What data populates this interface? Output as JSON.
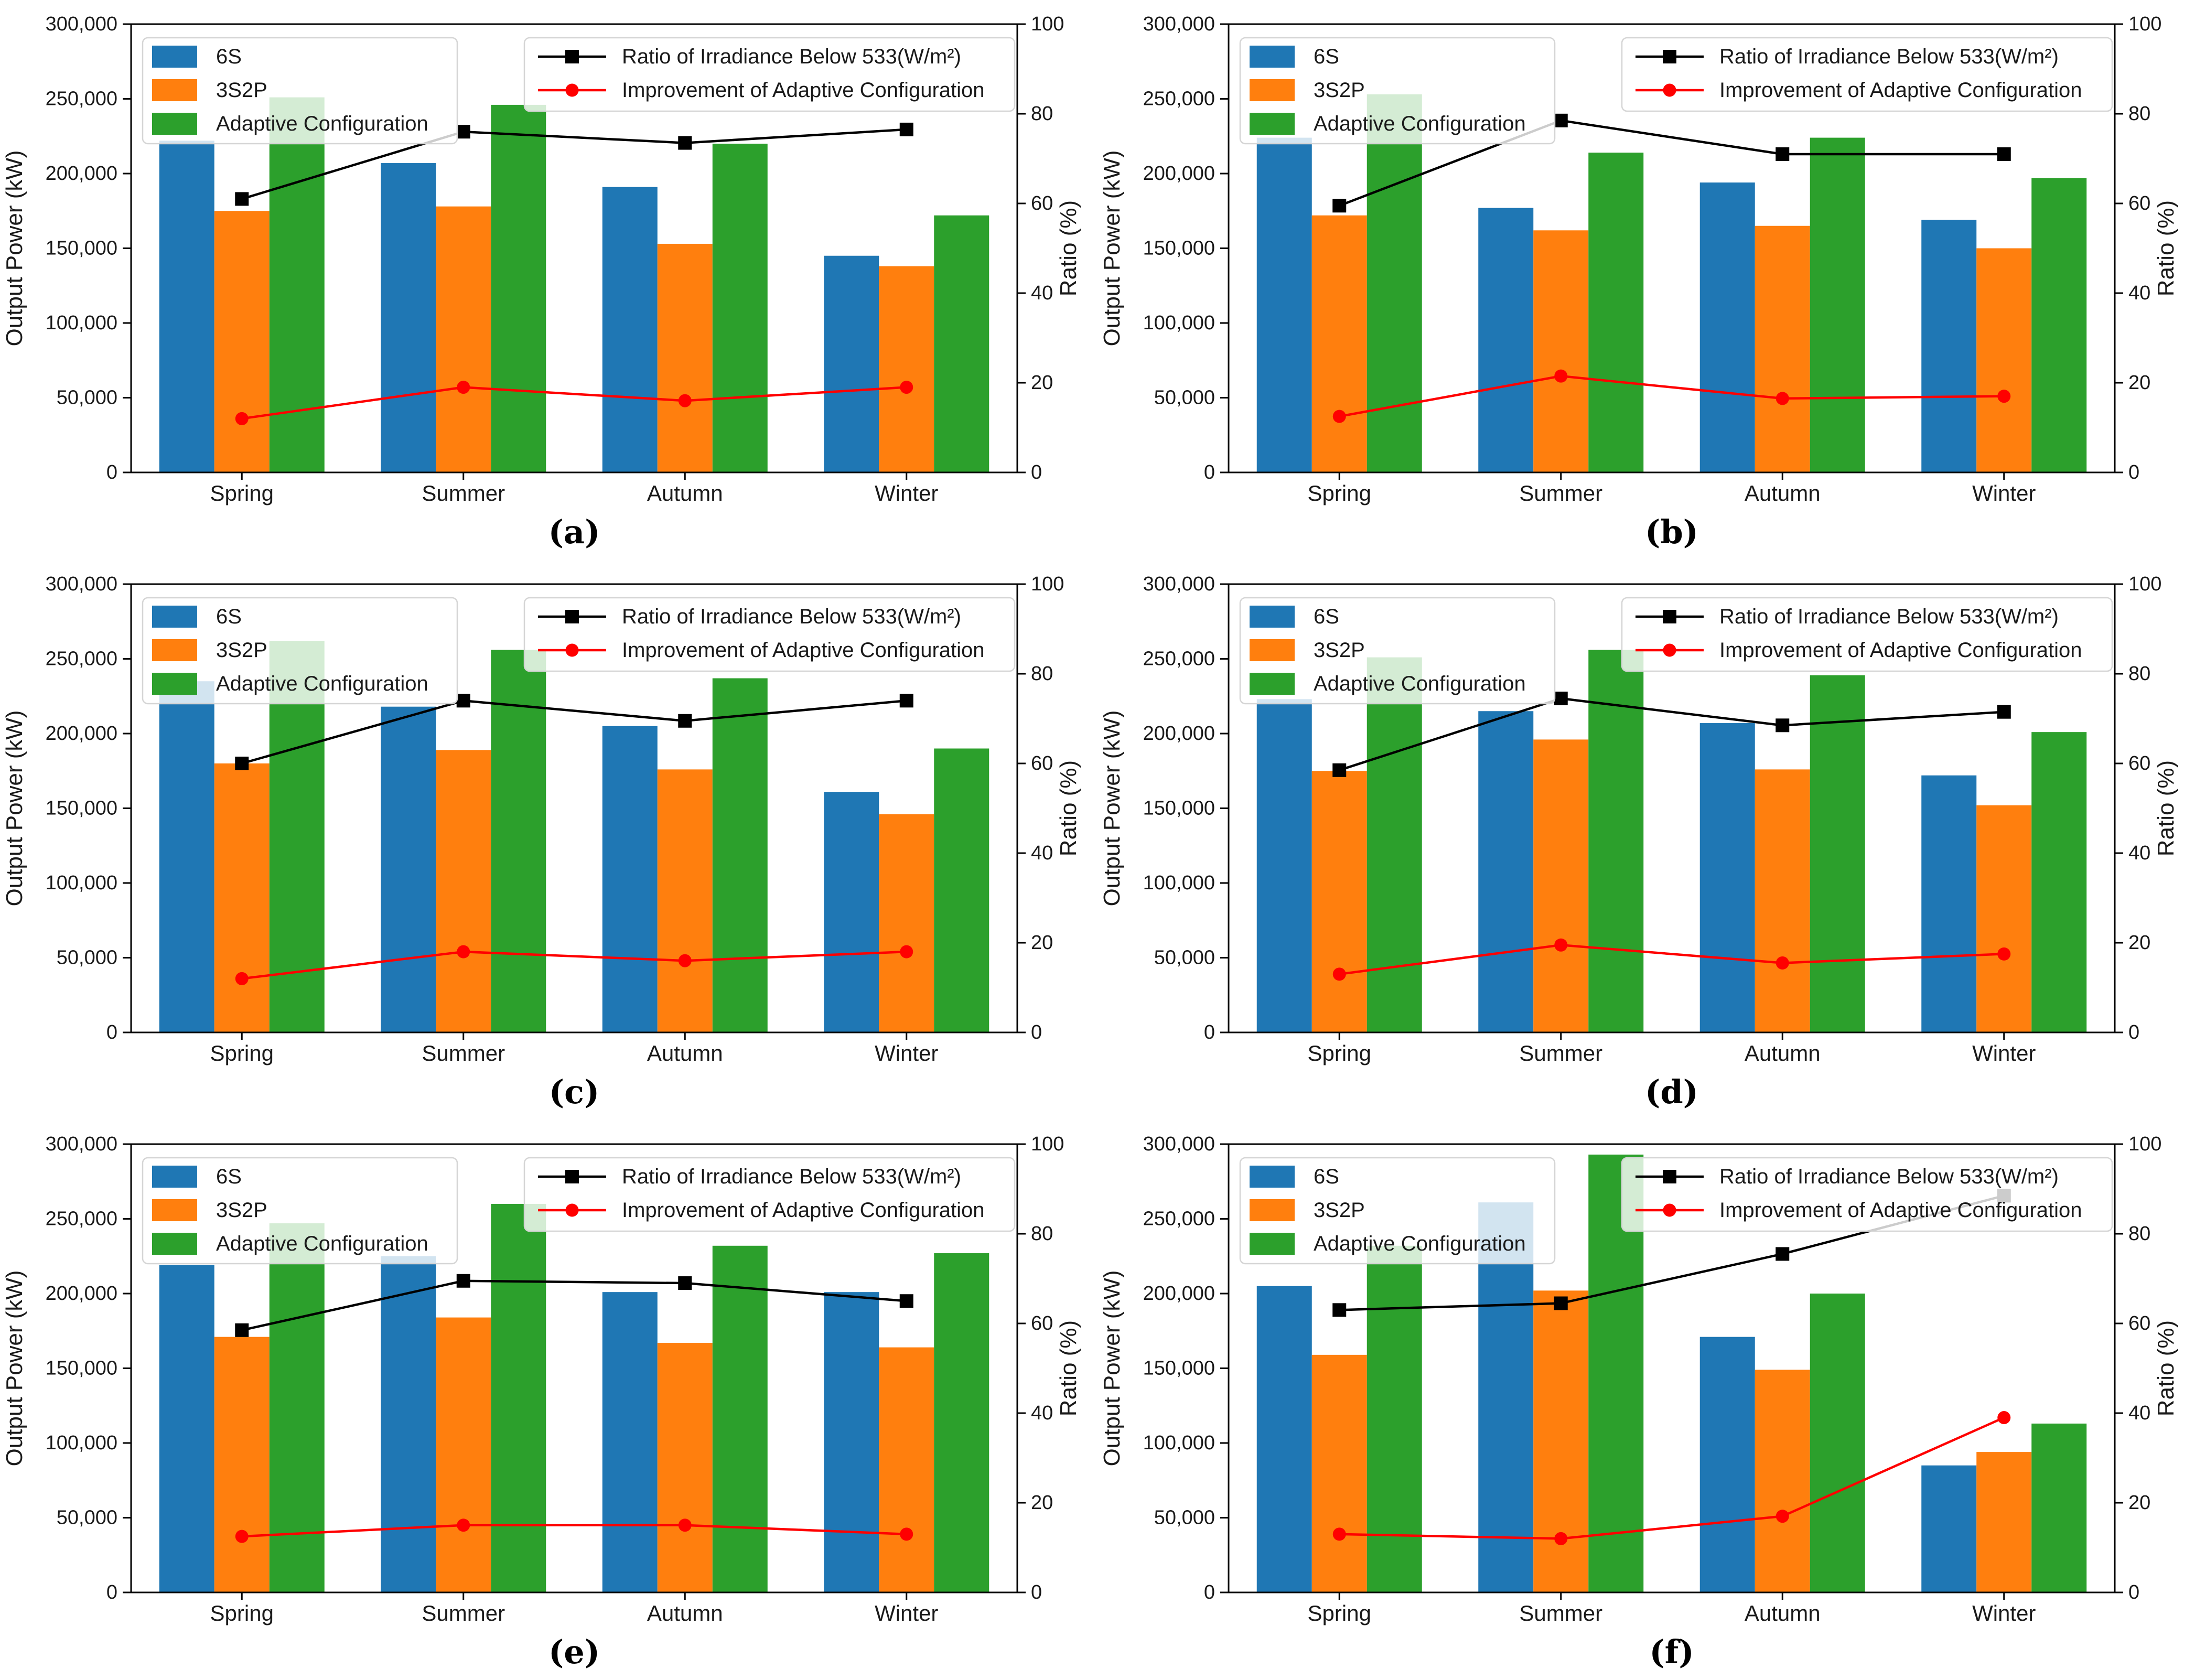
{
  "axes": {
    "ylabel": "Output Power (kW)",
    "y2label": "Ratio (%)",
    "categories": [
      "Spring",
      "Summer",
      "Autumn",
      "Winter"
    ],
    "ylim": [
      0,
      300000
    ],
    "y2lim": [
      0,
      100
    ],
    "yticks": [
      {
        "value": 0,
        "label": "0"
      },
      {
        "value": 50000,
        "label": "50,000"
      },
      {
        "value": 100000,
        "label": "100,000"
      },
      {
        "value": 150000,
        "label": "150,000"
      },
      {
        "value": 200000,
        "label": "200,000"
      },
      {
        "value": 250000,
        "label": "250,000"
      },
      {
        "value": 300000,
        "label": "300,000"
      }
    ],
    "y2ticks": [
      {
        "value": 0,
        "label": "0"
      },
      {
        "value": 20,
        "label": "20"
      },
      {
        "value": 40,
        "label": "40"
      },
      {
        "value": 60,
        "label": "60"
      },
      {
        "value": 80,
        "label": "80"
      },
      {
        "value": 100,
        "label": "100"
      }
    ],
    "grid": "off",
    "legend_position": "bars top-left, lines top-right"
  },
  "legend": {
    "bar_entries": [
      {
        "label": "6S",
        "color": "#1f77b4"
      },
      {
        "label": "3S2P",
        "color": "#ff7f0e"
      },
      {
        "label": "Adaptive Configuration",
        "color": "#2ca02c"
      }
    ],
    "line_entries": [
      {
        "label": "Ratio of Irradiance Below 533(W/m²)",
        "color": "#000000",
        "marker": "square"
      },
      {
        "label": "Improvement of Adaptive Configuration",
        "color": "#ff0000",
        "marker": "circle"
      }
    ]
  },
  "style": {
    "background": "#ffffff",
    "axis_color": "#000000",
    "text_color": "#1a1a1a",
    "legend_bg": "rgba(255,255,255,0.8)",
    "legend_border": "#d5d5d5",
    "bar_blue": "#1f77b4",
    "bar_orange": "#ff7f0e",
    "bar_green": "#2ca02c",
    "ratio_line": "#000000",
    "improvement_line": "#ff0000"
  },
  "chart_data": [
    {
      "label": "(a)",
      "type": "bar+line",
      "categories": [
        "Spring",
        "Summer",
        "Autumn",
        "Winter"
      ],
      "series": [
        {
          "name": "6S",
          "values": [
            222000,
            207000,
            191000,
            145000
          ]
        },
        {
          "name": "3S2P",
          "values": [
            175000,
            178000,
            153000,
            138000
          ]
        },
        {
          "name": "Adaptive Configuration",
          "values": [
            251000,
            246000,
            220000,
            172000
          ]
        }
      ],
      "lines": [
        {
          "name": "Ratio of Irradiance Below 533(W/m²)",
          "axis": "right",
          "values": [
            61,
            76,
            73.5,
            76.5
          ]
        },
        {
          "name": "Improvement of Adaptive Configuration",
          "axis": "right",
          "values": [
            12,
            19,
            16,
            19
          ]
        }
      ]
    },
    {
      "label": "(b)",
      "type": "bar+line",
      "categories": [
        "Spring",
        "Summer",
        "Autumn",
        "Winter"
      ],
      "series": [
        {
          "name": "6S",
          "values": [
            224000,
            177000,
            194000,
            169000
          ]
        },
        {
          "name": "3S2P",
          "values": [
            172000,
            162000,
            165000,
            150000
          ]
        },
        {
          "name": "Adaptive Configuration",
          "values": [
            253000,
            214000,
            224000,
            197000
          ]
        }
      ],
      "lines": [
        {
          "name": "Ratio of Irradiance Below 533(W/m²)",
          "axis": "right",
          "values": [
            59.5,
            78.5,
            71,
            71
          ]
        },
        {
          "name": "Improvement of Adaptive Configuration",
          "axis": "right",
          "values": [
            12.5,
            21.5,
            16.5,
            17
          ]
        }
      ]
    },
    {
      "label": "(c)",
      "type": "bar+line",
      "categories": [
        "Spring",
        "Summer",
        "Autumn",
        "Winter"
      ],
      "series": [
        {
          "name": "6S",
          "values": [
            235000,
            218000,
            205000,
            161000
          ]
        },
        {
          "name": "3S2P",
          "values": [
            180000,
            189000,
            176000,
            146000
          ]
        },
        {
          "name": "Adaptive Configuration",
          "values": [
            262000,
            256000,
            237000,
            190000
          ]
        }
      ],
      "lines": [
        {
          "name": "Ratio of Irradiance Below 533(W/m²)",
          "axis": "right",
          "values": [
            60,
            74,
            69.5,
            74
          ]
        },
        {
          "name": "Improvement of Adaptive Configuration",
          "axis": "right",
          "values": [
            12,
            18,
            16,
            18
          ]
        }
      ]
    },
    {
      "label": "(d)",
      "type": "bar+line",
      "categories": [
        "Spring",
        "Summer",
        "Autumn",
        "Winter"
      ],
      "series": [
        {
          "name": "6S",
          "values": [
            223000,
            215000,
            207000,
            172000
          ]
        },
        {
          "name": "3S2P",
          "values": [
            175000,
            196000,
            176000,
            152000
          ]
        },
        {
          "name": "Adaptive Configuration",
          "values": [
            251000,
            256000,
            239000,
            201000
          ]
        }
      ],
      "lines": [
        {
          "name": "Ratio of Irradiance Below 533(W/m²)",
          "axis": "right",
          "values": [
            58.5,
            74.5,
            68.5,
            71.5
          ]
        },
        {
          "name": "Improvement of Adaptive Configuration",
          "axis": "right",
          "values": [
            13,
            19.5,
            15.5,
            17.5
          ]
        }
      ]
    },
    {
      "label": "(e)",
      "type": "bar+line",
      "categories": [
        "Spring",
        "Summer",
        "Autumn",
        "Winter"
      ],
      "series": [
        {
          "name": "6S",
          "values": [
            219000,
            225000,
            201000,
            201000
          ]
        },
        {
          "name": "3S2P",
          "values": [
            171000,
            184000,
            167000,
            164000
          ]
        },
        {
          "name": "Adaptive Configuration",
          "values": [
            247000,
            260000,
            232000,
            227000
          ]
        }
      ],
      "lines": [
        {
          "name": "Ratio of Irradiance Below 533(W/m²)",
          "axis": "right",
          "values": [
            58.5,
            69.5,
            69,
            65
          ]
        },
        {
          "name": "Improvement of Adaptive Configuration",
          "axis": "right",
          "values": [
            12.5,
            15,
            15,
            13
          ]
        }
      ]
    },
    {
      "label": "(f)",
      "type": "bar+line",
      "categories": [
        "Spring",
        "Summer",
        "Autumn",
        "Winter"
      ],
      "series": [
        {
          "name": "6S",
          "values": [
            205000,
            261000,
            171000,
            85000
          ]
        },
        {
          "name": "3S2P",
          "values": [
            159000,
            202000,
            149000,
            94000
          ]
        },
        {
          "name": "Adaptive Configuration",
          "values": [
            232000,
            293000,
            200000,
            113000
          ]
        }
      ],
      "lines": [
        {
          "name": "Ratio of Irradiance Below 533(W/m²)",
          "axis": "right",
          "values": [
            63,
            64.5,
            75.5,
            88.5
          ]
        },
        {
          "name": "Improvement of Adaptive Configuration",
          "axis": "right",
          "values": [
            13,
            12,
            17,
            39
          ]
        }
      ]
    }
  ]
}
